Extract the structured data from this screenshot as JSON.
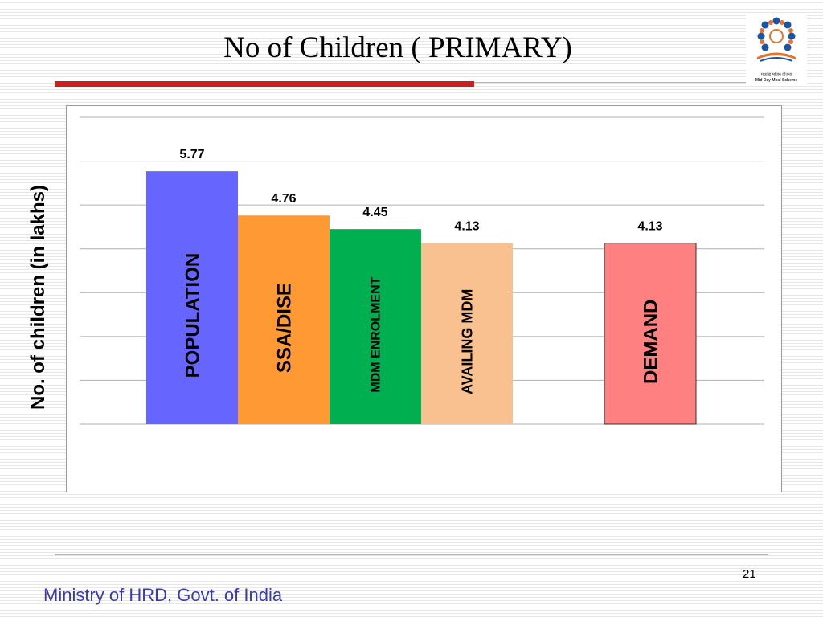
{
  "slide": {
    "title": "No of Children  ( PRIMARY)",
    "footer": "Ministry of HRD, Govt. of India",
    "page_number": "21",
    "logo": {
      "icon": "mid-day-meal-logo-icon",
      "caption_hindi": "मध्याह्न भोजन योजना",
      "caption_english": "Mid Day Meal Scheme"
    }
  },
  "chart_data": {
    "type": "bar",
    "title": "",
    "xlabel": "",
    "ylabel": "No. of children (in lakhs)",
    "categories": [
      "POPULATION",
      "SSA/DISE",
      "MDM ENROLMENT",
      "AVAILING MDM",
      "",
      "DEMAND"
    ],
    "values": [
      5.77,
      4.76,
      4.45,
      4.13,
      null,
      4.13
    ],
    "data_labels": [
      "5.77",
      "4.76",
      "4.45",
      "4.13",
      "",
      "4.13"
    ],
    "colors": [
      "#6666ff",
      "#ff9933",
      "#00b050",
      "#f9c090",
      null,
      "#ff8080"
    ],
    "ylim": [
      0,
      7
    ],
    "grid": true,
    "legend": "none"
  }
}
